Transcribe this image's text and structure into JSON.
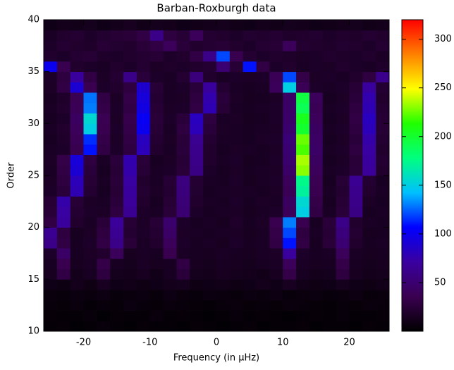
{
  "chart_data": {
    "type": "heatmap",
    "title": "Barban-Roxburgh data",
    "xlabel": "Frequency (in μHz)",
    "ylabel": "Order",
    "xlim": [
      -26,
      26
    ],
    "xticks": [
      -20,
      -10,
      0,
      10,
      20
    ],
    "ylim": [
      10,
      40
    ],
    "yticks": [
      10,
      15,
      20,
      25,
      30,
      35,
      40
    ],
    "zlim": [
      0,
      320
    ],
    "zticks": [
      50,
      100,
      150,
      200,
      250,
      300
    ],
    "colormap": [
      "#000000",
      "#3a0050",
      "#3a00a0",
      "#0000ff",
      "#00c0ff",
      "#00ff80",
      "#20ff00",
      "#ffff00",
      "#ff8000",
      "#ff0000"
    ],
    "x": [
      -25,
      -23,
      -21,
      -19,
      -17,
      -15,
      -13,
      -11,
      -9,
      -7,
      -5,
      -3,
      -1,
      1,
      3,
      5,
      7,
      9,
      11,
      13,
      15,
      17,
      19,
      21,
      23,
      25
    ],
    "y": [
      10,
      11,
      12,
      13,
      14,
      15,
      16,
      17,
      18,
      19,
      20,
      21,
      22,
      23,
      24,
      25,
      26,
      27,
      28,
      29,
      30,
      31,
      32,
      33,
      34,
      35,
      36,
      37,
      38,
      39
    ],
    "z": [
      [
        3,
        4,
        2,
        3,
        5,
        3,
        2,
        4,
        3,
        3,
        2,
        4,
        3,
        2,
        3,
        4,
        2,
        3,
        3,
        4,
        2,
        3,
        3,
        2,
        4,
        3
      ],
      [
        4,
        3,
        3,
        5,
        2,
        4,
        3,
        3,
        6,
        3,
        4,
        3,
        2,
        3,
        5,
        3,
        4,
        3,
        2,
        3,
        4,
        3,
        5,
        3,
        3,
        4
      ],
      [
        5,
        4,
        6,
        3,
        5,
        4,
        7,
        5,
        4,
        6,
        5,
        4,
        3,
        5,
        6,
        4,
        5,
        4,
        6,
        5,
        4,
        3,
        5,
        4,
        6,
        5
      ],
      [
        6,
        5,
        7,
        6,
        8,
        5,
        6,
        7,
        5,
        8,
        6,
        5,
        7,
        6,
        5,
        7,
        6,
        8,
        5,
        6,
        7,
        5,
        6,
        8,
        5,
        6
      ],
      [
        10,
        8,
        12,
        9,
        14,
        10,
        11,
        9,
        10,
        12,
        13,
        9,
        10,
        11,
        9,
        10,
        12,
        10,
        14,
        11,
        9,
        10,
        13,
        10,
        9,
        11
      ],
      [
        14,
        30,
        12,
        15,
        28,
        13,
        12,
        14,
        11,
        15,
        26,
        13,
        12,
        14,
        13,
        12,
        11,
        14,
        32,
        15,
        12,
        13,
        28,
        14,
        12,
        13
      ],
      [
        15,
        35,
        14,
        16,
        32,
        15,
        13,
        16,
        14,
        15,
        30,
        14,
        13,
        15,
        14,
        13,
        15,
        16,
        40,
        16,
        14,
        15,
        32,
        15,
        13,
        14
      ],
      [
        18,
        45,
        15,
        17,
        20,
        40,
        14,
        16,
        15,
        35,
        16,
        15,
        14,
        16,
        15,
        14,
        16,
        17,
        70,
        18,
        15,
        16,
        40,
        16,
        14,
        15
      ],
      [
        60,
        30,
        15,
        18,
        30,
        60,
        25,
        16,
        20,
        40,
        18,
        15,
        16,
        14,
        18,
        15,
        16,
        30,
        110,
        30,
        15,
        25,
        50,
        20,
        15,
        16
      ],
      [
        65,
        28,
        14,
        17,
        28,
        65,
        22,
        18,
        22,
        45,
        17,
        16,
        15,
        16,
        17,
        14,
        16,
        32,
        120,
        28,
        16,
        24,
        55,
        22,
        14,
        15
      ],
      [
        30,
        70,
        20,
        16,
        25,
        68,
        24,
        17,
        24,
        48,
        18,
        15,
        16,
        14,
        19,
        15,
        17,
        35,
        130,
        35,
        15,
        25,
        60,
        20,
        16,
        15
      ],
      [
        25,
        72,
        22,
        18,
        17,
        28,
        65,
        18,
        16,
        25,
        50,
        18,
        15,
        16,
        17,
        14,
        16,
        18,
        40,
        150,
        30,
        16,
        25,
        58,
        15,
        16
      ],
      [
        24,
        75,
        24,
        17,
        16,
        26,
        68,
        20,
        15,
        24,
        52,
        20,
        16,
        15,
        18,
        15,
        17,
        16,
        42,
        155,
        32,
        15,
        24,
        60,
        17,
        15
      ],
      [
        18,
        26,
        78,
        22,
        15,
        24,
        70,
        22,
        17,
        22,
        55,
        21,
        15,
        16,
        17,
        16,
        15,
        17,
        38,
        170,
        35,
        16,
        22,
        62,
        20,
        16
      ],
      [
        17,
        28,
        80,
        24,
        16,
        25,
        72,
        20,
        16,
        23,
        56,
        22,
        16,
        15,
        18,
        14,
        16,
        18,
        40,
        175,
        36,
        15,
        24,
        65,
        22,
        15
      ],
      [
        16,
        30,
        90,
        26,
        15,
        24,
        75,
        24,
        16,
        18,
        25,
        58,
        18,
        15,
        17,
        15,
        16,
        17,
        45,
        230,
        40,
        16,
        18,
        26,
        68,
        20
      ],
      [
        17,
        32,
        92,
        28,
        16,
        26,
        76,
        25,
        15,
        17,
        24,
        60,
        20,
        16,
        18,
        14,
        15,
        18,
        48,
        235,
        42,
        15,
        17,
        25,
        70,
        22
      ],
      [
        16,
        18,
        35,
        110,
        30,
        18,
        28,
        80,
        20,
        16,
        26,
        62,
        20,
        15,
        17,
        16,
        15,
        17,
        50,
        220,
        45,
        16,
        18,
        28,
        72,
        20
      ],
      [
        15,
        19,
        38,
        115,
        32,
        17,
        30,
        82,
        22,
        17,
        25,
        64,
        22,
        16,
        16,
        15,
        17,
        18,
        52,
        225,
        44,
        15,
        17,
        26,
        74,
        22
      ],
      [
        16,
        20,
        40,
        150,
        35,
        18,
        32,
        100,
        24,
        16,
        28,
        80,
        26,
        17,
        16,
        15,
        16,
        17,
        48,
        200,
        42,
        16,
        18,
        28,
        80,
        24
      ],
      [
        15,
        18,
        42,
        155,
        36,
        17,
        34,
        102,
        25,
        18,
        26,
        82,
        28,
        16,
        17,
        14,
        15,
        18,
        46,
        205,
        40,
        15,
        17,
        30,
        82,
        23
      ],
      [
        16,
        20,
        38,
        130,
        32,
        18,
        30,
        95,
        24,
        17,
        18,
        30,
        78,
        24,
        16,
        15,
        16,
        18,
        45,
        190,
        38,
        16,
        18,
        28,
        78,
        22
      ],
      [
        15,
        19,
        36,
        128,
        30,
        17,
        32,
        92,
        22,
        16,
        17,
        28,
        76,
        26,
        17,
        14,
        15,
        17,
        44,
        195,
        40,
        15,
        17,
        26,
        76,
        20
      ],
      [
        17,
        30,
        90,
        35,
        18,
        20,
        28,
        88,
        24,
        16,
        18,
        26,
        70,
        22,
        16,
        15,
        16,
        40,
        150,
        38,
        18,
        16,
        18,
        24,
        70,
        22
      ],
      [
        18,
        28,
        70,
        30,
        17,
        22,
        60,
        26,
        18,
        16,
        22,
        55,
        20,
        16,
        18,
        17,
        18,
        38,
        120,
        32,
        17,
        18,
        16,
        20,
        28,
        62
      ],
      [
        100,
        35,
        20,
        18,
        16,
        20,
        18,
        22,
        17,
        19,
        18,
        20,
        22,
        50,
        24,
        110,
        30,
        18,
        20,
        16,
        18,
        17,
        20,
        18,
        16,
        19
      ],
      [
        20,
        18,
        22,
        24,
        19,
        18,
        20,
        22,
        24,
        18,
        20,
        30,
        60,
        120,
        35,
        22,
        18,
        20,
        19,
        17,
        18,
        20,
        19,
        18,
        20,
        17
      ],
      [
        18,
        22,
        20,
        19,
        24,
        21,
        20,
        25,
        30,
        40,
        26,
        20,
        22,
        24,
        20,
        18,
        22,
        24,
        40,
        22,
        20,
        19,
        21,
        20,
        18,
        22
      ],
      [
        16,
        20,
        22,
        18,
        21,
        24,
        25,
        30,
        60,
        28,
        24,
        40,
        22,
        20,
        18,
        21,
        20,
        22,
        19,
        20,
        21,
        18,
        20,
        19,
        22,
        20
      ],
      [
        10,
        12,
        11,
        13,
        10,
        12,
        14,
        11,
        13,
        12,
        10,
        11,
        12,
        13,
        11,
        10,
        12,
        11,
        13,
        12,
        10,
        11,
        12,
        13,
        11,
        12
      ]
    ]
  }
}
